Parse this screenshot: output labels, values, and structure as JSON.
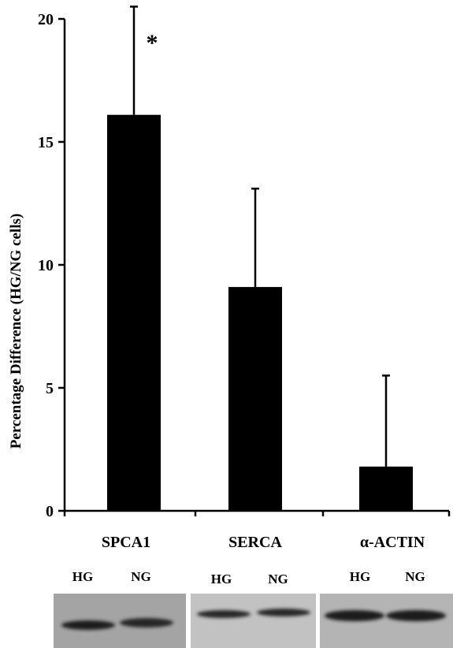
{
  "chart_data": {
    "type": "bar",
    "ylabel": "Percentage Difference (HG/NG cells)",
    "xlabel": "",
    "categories": [
      "SPCA1",
      "SERCA",
      "α-ACTIN"
    ],
    "values": [
      16.1,
      9.1,
      1.8
    ],
    "error_upper": [
      20.5,
      13.1,
      5.5
    ],
    "ylim": [
      0,
      20
    ],
    "yticks": [
      0,
      5,
      10,
      15,
      20
    ],
    "significance": [
      "*",
      "",
      ""
    ],
    "bar_color": "#000000",
    "grid": false,
    "legend": "none"
  },
  "blots": [
    {
      "lanes": [
        "HG",
        "NG"
      ]
    },
    {
      "lanes": [
        "HG",
        "NG"
      ]
    },
    {
      "lanes": [
        "HG",
        "NG"
      ]
    }
  ]
}
